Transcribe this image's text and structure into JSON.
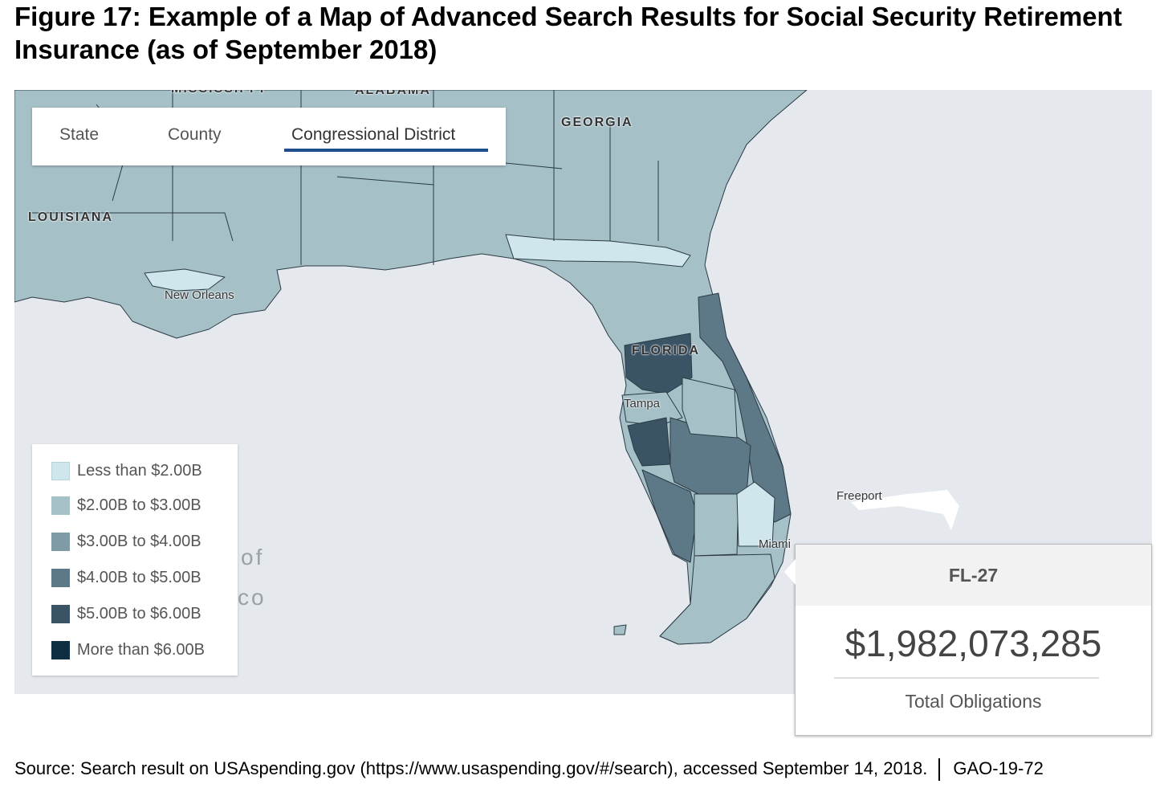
{
  "figure": {
    "title": "Figure 17: Example of a Map of Advanced Search Results for Social Security Retirement Insurance (as of September 2018)",
    "source": "Source: Search result on USAspending.gov (https://www.usaspending.gov/#/search), accessed September 14, 2018.",
    "report_id": "GAO-19-72"
  },
  "map": {
    "tabs": [
      {
        "label": "State",
        "active": false
      },
      {
        "label": "County",
        "active": false
      },
      {
        "label": "Congressional District",
        "active": true
      }
    ],
    "place_labels": {
      "mississippi": "MISSISSIPPI",
      "alabama": "ALABAMA",
      "georgia": "GEORGIA",
      "louisiana": "LOUISIANA",
      "new_orleans": "New Orleans",
      "florida": "FLORIDA",
      "tampa": "Tampa",
      "miami": "Miami",
      "freeport": "Freeport",
      "gulf_1": "of",
      "gulf_2": "co"
    },
    "legend": [
      {
        "label": "Less than $2.00B",
        "color": "#cfe6ec"
      },
      {
        "label": "$2.00B to $3.00B",
        "color": "#a6c0c8"
      },
      {
        "label": "$3.00B to $4.00B",
        "color": "#7f9ba6"
      },
      {
        "label": "$4.00B to $5.00B",
        "color": "#5d7887"
      },
      {
        "label": "$5.00B to $6.00B",
        "color": "#3a5466"
      },
      {
        "label": "More than $6.00B",
        "color": "#0e2f42"
      }
    ],
    "tooltip": {
      "district": "FL-27",
      "value": "$1,982,073,285",
      "label": "Total Obligations"
    }
  }
}
